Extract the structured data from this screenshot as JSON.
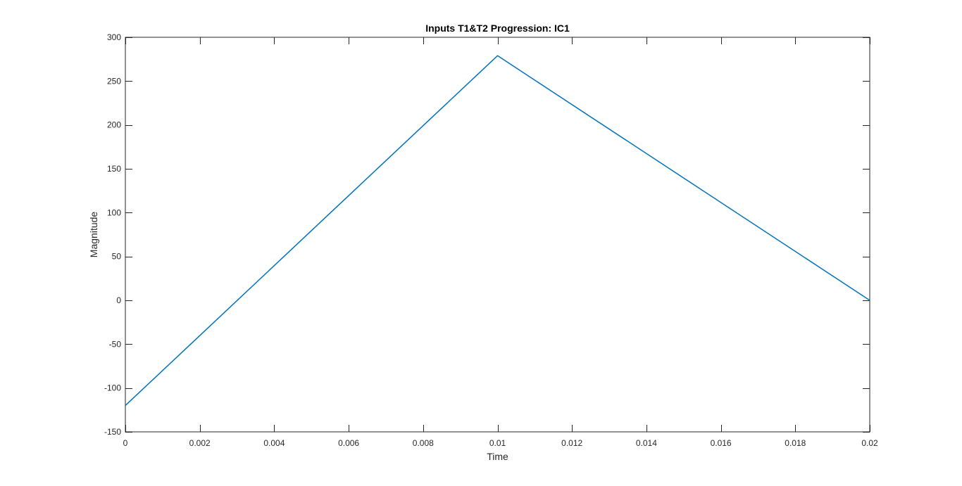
{
  "chart_data": {
    "type": "line",
    "title": "Inputs T1&T2 Progression: IC1",
    "xlabel": "Time",
    "ylabel": "Magnitude",
    "xlim": [
      0,
      0.02
    ],
    "ylim": [
      -150,
      300
    ],
    "xticks": [
      0,
      0.002,
      0.004,
      0.006,
      0.008,
      0.01,
      0.012,
      0.014,
      0.016,
      0.018,
      0.02
    ],
    "xtick_labels": [
      "0",
      "0.002",
      "0.004",
      "0.006",
      "0.008",
      "0.01",
      "0.012",
      "0.014",
      "0.016",
      "0.018",
      "0.02"
    ],
    "yticks": [
      -150,
      -100,
      -50,
      0,
      50,
      100,
      150,
      200,
      250,
      300
    ],
    "ytick_labels": [
      "-150",
      "-100",
      "-50",
      "0",
      "50",
      "100",
      "150",
      "200",
      "250",
      "300"
    ],
    "grid": false,
    "series": [
      {
        "color": "#0072BD",
        "x": [
          0,
          0.01,
          0.02
        ],
        "y": [
          -120,
          279,
          0
        ]
      }
    ]
  }
}
